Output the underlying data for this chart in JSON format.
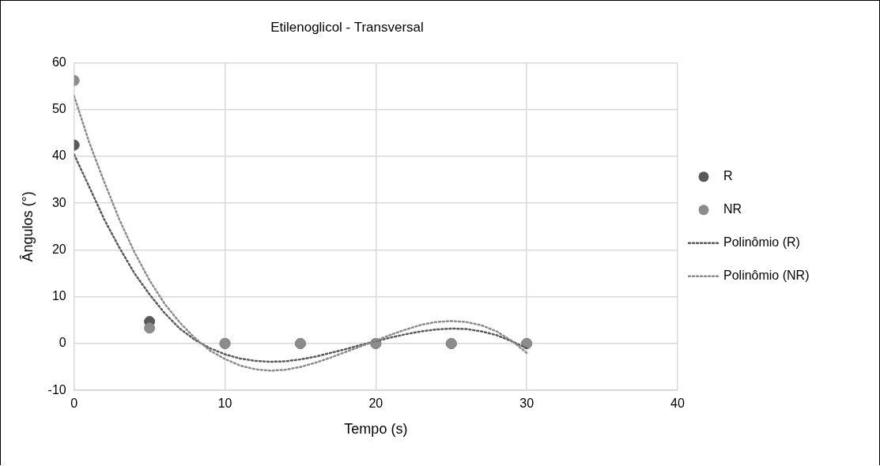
{
  "chart_data": {
    "type": "scatter",
    "title": "Etilenoglicol - Transversal",
    "xlabel": "Tempo (s)",
    "ylabel": "Ângulos (°)",
    "xlim": [
      0,
      40
    ],
    "xticks": [
      0,
      10,
      20,
      30,
      40
    ],
    "ylim": [
      -10,
      60
    ],
    "yticks": [
      -10,
      0,
      10,
      20,
      30,
      40,
      50,
      60
    ],
    "grid": true,
    "legend": "right",
    "marker": "circle",
    "series": [
      {
        "name": "R",
        "type": "scatter",
        "color": "#595959",
        "x": [
          0,
          5,
          10,
          15,
          20,
          25,
          30
        ],
        "values": [
          42.4,
          4.7,
          0,
          0,
          0,
          0,
          0
        ]
      },
      {
        "name": "NR",
        "type": "scatter",
        "color": "#8c8c8c",
        "x": [
          0,
          5,
          10,
          15,
          20,
          25,
          30
        ],
        "values": [
          56.2,
          3.3,
          0,
          0,
          0,
          0,
          0
        ]
      },
      {
        "name": "Polinômio (R)",
        "type": "line",
        "color": "#595959",
        "marker": "none",
        "line_style": "dotted",
        "x": [
          0,
          1,
          2,
          3,
          4,
          5,
          6,
          7,
          8,
          9,
          10,
          11,
          12,
          13,
          14,
          15,
          16,
          17,
          18,
          19,
          20,
          21,
          22,
          23,
          24,
          25,
          26,
          27,
          28,
          29,
          30
        ],
        "values": [
          40.4,
          33.5,
          26.5,
          20.5,
          15,
          10.5,
          6.5,
          3.2,
          0.8,
          -1,
          -2.3,
          -3.2,
          -3.7,
          -3.9,
          -3.8,
          -3.4,
          -2.8,
          -2,
          -1.2,
          -0.3,
          0.5,
          1.3,
          2,
          2.6,
          3,
          3.2,
          3.1,
          2.6,
          1.8,
          0.5,
          -1
        ]
      },
      {
        "name": "Polinômio (NR)",
        "type": "line",
        "color": "#8c8c8c",
        "marker": "none",
        "line_style": "dotted",
        "x": [
          0,
          1,
          2,
          3,
          4,
          5,
          6,
          7,
          8,
          9,
          10,
          11,
          12,
          13,
          14,
          15,
          16,
          17,
          18,
          19,
          20,
          21,
          22,
          23,
          24,
          25,
          26,
          27,
          28,
          29,
          30
        ],
        "values": [
          52.9,
          43,
          34.5,
          26.5,
          19.5,
          13.5,
          8.5,
          4.5,
          1.2,
          -1.5,
          -3.3,
          -4.7,
          -5.5,
          -5.8,
          -5.6,
          -5,
          -4.1,
          -3,
          -1.8,
          -0.6,
          0.6,
          1.9,
          3,
          4,
          4.6,
          4.8,
          4.6,
          3.9,
          2.6,
          0.6,
          -2
        ]
      }
    ]
  }
}
